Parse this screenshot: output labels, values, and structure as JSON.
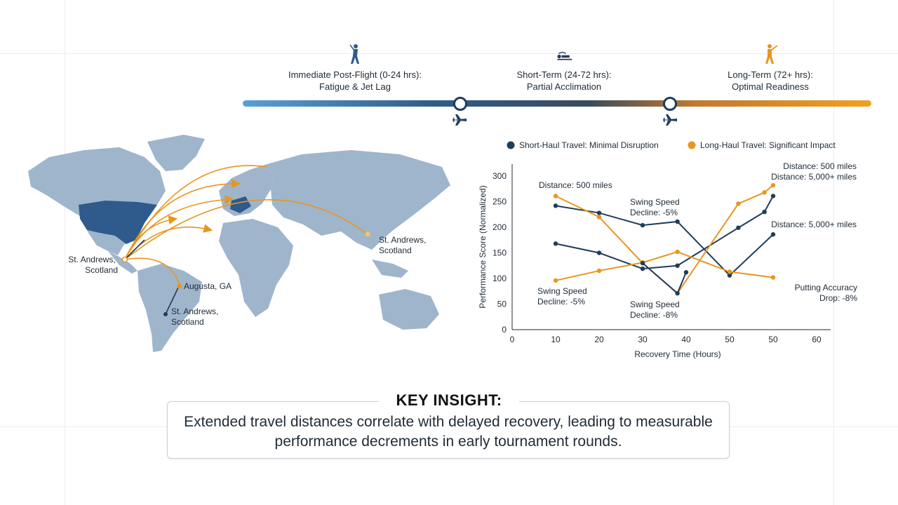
{
  "timeline": {
    "phases": [
      {
        "title": "Immediate Post-Flight (0-24 hrs):",
        "subtitle": "Fatigue & Jet Lag",
        "icon": "golfer-icon"
      },
      {
        "title": "Short-Term (24-72 hrs):",
        "subtitle": "Partial Acclimation",
        "icon": "resting-person-icon"
      },
      {
        "title": "Long-Term (72+ hrs):",
        "subtitle": "Optimal Readiness",
        "icon": "golfer-swing-icon"
      }
    ]
  },
  "map": {
    "labels": {
      "origin": [
        "St. Andrews,",
        "Scotland"
      ],
      "augusta": "Augusta, GA",
      "south": [
        "St. Andrews,",
        "Scotland"
      ],
      "asia": [
        "St. Andrews,",
        "Scotland"
      ]
    },
    "colors": {
      "land": "#9fb5cc",
      "highlight": "#2e5a8c",
      "long_route": "#e8961e",
      "short_route": "#1f3d5c"
    }
  },
  "chart_data": {
    "type": "line",
    "legend": [
      {
        "name": "Short-Haul Travel: Minimal Disruption",
        "color": "#1f3d5c"
      },
      {
        "name": "Long-Haul Travel: Significant Impact",
        "color": "#e8961e"
      }
    ],
    "xlabel": "Recovery Time (Hours)",
    "ylabel": "Performance Score (Normalized)",
    "x_ticks": [
      "0",
      "10",
      "20",
      "30",
      "40",
      "50",
      "50",
      "60"
    ],
    "y_ticks": [
      "0",
      "50",
      "100",
      "150",
      "200",
      "250",
      "300"
    ],
    "ylim": [
      0,
      300
    ],
    "series": [
      {
        "color": "#1f3d5c",
        "points": [
          [
            10,
            242
          ],
          [
            20,
            228
          ],
          [
            30,
            204
          ],
          [
            38,
            211
          ],
          [
            50,
            106
          ],
          [
            60,
            186
          ]
        ]
      },
      {
        "color": "#1f3d5c",
        "points": [
          [
            10,
            168
          ],
          [
            20,
            150
          ],
          [
            30,
            119
          ],
          [
            38,
            125
          ],
          [
            52,
            199
          ],
          [
            58,
            230
          ],
          [
            60,
            261
          ]
        ]
      },
      {
        "color": "#e8961e",
        "points": [
          [
            10,
            261
          ],
          [
            20,
            220
          ],
          [
            30,
            130
          ],
          [
            38,
            71
          ],
          [
            52,
            246
          ],
          [
            58,
            268
          ],
          [
            60,
            282
          ]
        ]
      },
      {
        "color": "#e8961e",
        "points": [
          [
            10,
            96
          ],
          [
            20,
            115
          ],
          [
            30,
            131
          ],
          [
            38,
            152
          ],
          [
            50,
            113
          ],
          [
            60,
            102
          ]
        ]
      },
      {
        "color": "#1f3d5c",
        "points": [
          [
            30,
            130
          ],
          [
            38,
            71
          ],
          [
            40,
            112
          ]
        ]
      }
    ],
    "annotations": [
      {
        "lines": [
          "Distance: 500 miles"
        ]
      },
      {
        "lines": [
          "Swing Speed",
          "Decline: -5%"
        ]
      },
      {
        "lines": [
          "Distance: 500 miles",
          "Distance: 5,000+ miles"
        ]
      },
      {
        "lines": [
          "Distance: 5,000+ miles"
        ]
      },
      {
        "lines": [
          "Swing Speed",
          "Decline: -5%"
        ]
      },
      {
        "lines": [
          "Swing Speed",
          "Decline: -8%"
        ]
      },
      {
        "lines": [
          "Putting Accuracy",
          "Drop: -8%"
        ]
      }
    ]
  },
  "insight": {
    "title": "KEY INSIGHT:",
    "text": "Extended travel distances correlate with delayed recovery, leading to measurable performance decrements in early tournament rounds."
  }
}
